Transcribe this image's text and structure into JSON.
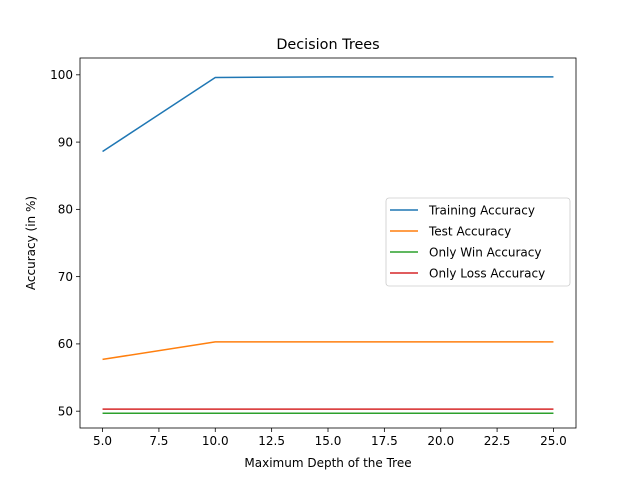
{
  "chart_data": {
    "type": "line",
    "title": "Decision Trees",
    "xlabel": "Maximum Depth of the Tree",
    "ylabel": "Accuracy (in %)",
    "x": [
      5,
      10,
      15,
      20,
      25
    ],
    "xlim": [
      4,
      26
    ],
    "ylim": [
      47.5,
      102.5
    ],
    "x_ticks": [
      5.0,
      7.5,
      10.0,
      12.5,
      15.0,
      17.5,
      20.0,
      22.5,
      25.0
    ],
    "x_tick_labels": [
      "5.0",
      "7.5",
      "10.0",
      "12.5",
      "15.0",
      "17.5",
      "20.0",
      "22.5",
      "25.0"
    ],
    "y_ticks": [
      50,
      60,
      70,
      80,
      90,
      100
    ],
    "y_tick_labels": [
      "50",
      "60",
      "70",
      "80",
      "90",
      "100"
    ],
    "grid": false,
    "legend_position": "center-right",
    "series": [
      {
        "name": "Training Accuracy",
        "color": "#1f77b4",
        "values": [
          88.6,
          99.6,
          99.7,
          99.7,
          99.7
        ]
      },
      {
        "name": "Test Accuracy",
        "color": "#ff7f0e",
        "values": [
          57.7,
          60.3,
          60.3,
          60.3,
          60.3
        ]
      },
      {
        "name": "Only Win Accuracy",
        "color": "#2ca02c",
        "values": [
          49.7,
          49.7,
          49.7,
          49.7,
          49.7
        ]
      },
      {
        "name": "Only Loss Accuracy",
        "color": "#d62728",
        "values": [
          50.3,
          50.3,
          50.3,
          50.3,
          50.3
        ]
      }
    ]
  }
}
